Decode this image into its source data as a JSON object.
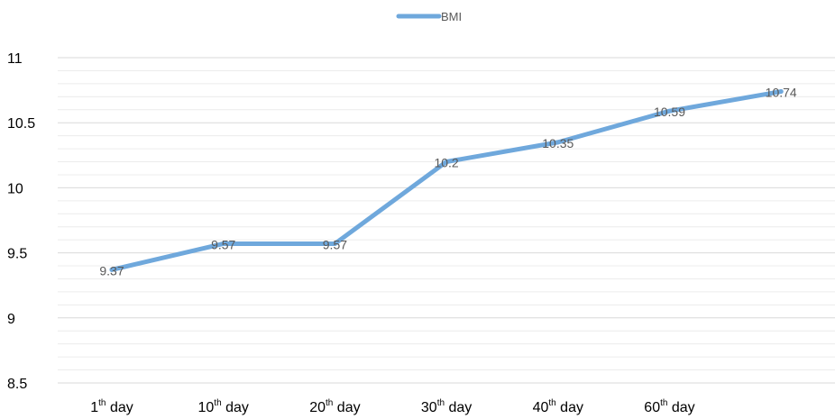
{
  "chart_data": {
    "type": "line",
    "categories": [
      "1th day",
      "10th day",
      "20th day",
      "30th day",
      "40th day",
      "60th day",
      ""
    ],
    "category_parts": [
      {
        "num": "1",
        "sup": "th",
        "rest": " day"
      },
      {
        "num": "10",
        "sup": "th",
        "rest": " day"
      },
      {
        "num": "20",
        "sup": "th",
        "rest": " day"
      },
      {
        "num": "30",
        "sup": "th",
        "rest": " day"
      },
      {
        "num": "40",
        "sup": "th",
        "rest": " day"
      },
      {
        "num": "60",
        "sup": "th",
        "rest": " day"
      },
      {
        "num": "",
        "sup": "",
        "rest": ""
      }
    ],
    "series": [
      {
        "name": "BMI",
        "values": [
          9.37,
          9.57,
          9.57,
          10.2,
          10.35,
          10.59,
          10.74
        ],
        "color": "#6fa8dc"
      }
    ],
    "data_labels": [
      "9.37",
      "9.57",
      "9.57",
      "10.2",
      "10.35",
      "10.59",
      "10.74"
    ],
    "y_ticks": [
      "8.5",
      "9",
      "9.5",
      "10",
      "10.5",
      "11"
    ],
    "ylim": [
      8.5,
      11
    ],
    "grid": true,
    "legend": "top-center"
  }
}
